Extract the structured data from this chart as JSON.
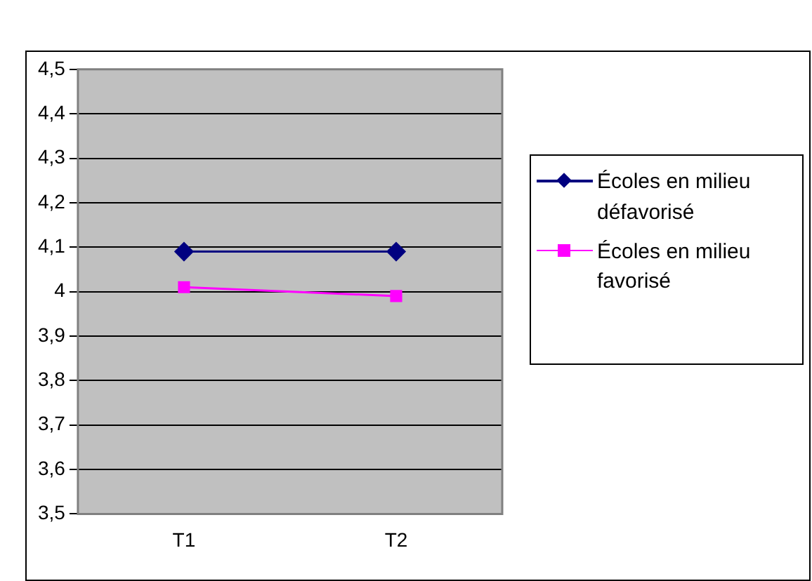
{
  "chart_data": {
    "type": "line",
    "categories": [
      "T1",
      "T2"
    ],
    "series": [
      {
        "name": "Écoles en milieu défavorisé",
        "color": "#000080",
        "values": [
          4.09,
          4.09
        ],
        "marker": "diamond"
      },
      {
        "name": "Écoles en milieu favorisé",
        "color": "#ff00ff",
        "values": [
          4.01,
          3.99
        ],
        "marker": "square"
      }
    ],
    "ylim": [
      3.5,
      4.5
    ],
    "yticks": [
      {
        "value": 3.5,
        "label": "3,5"
      },
      {
        "value": 3.6,
        "label": "3,6"
      },
      {
        "value": 3.7,
        "label": "3,7"
      },
      {
        "value": 3.8,
        "label": "3,8"
      },
      {
        "value": 3.9,
        "label": "3,9"
      },
      4,
      {
        "value": 4.1,
        "label": "4,1"
      },
      {
        "value": 4.2,
        "label": "4,2"
      },
      {
        "value": 4.3,
        "label": "4,3"
      },
      {
        "value": 4.4,
        "label": "4,4"
      },
      {
        "value": 4.5,
        "label": "4,5"
      }
    ],
    "grid": "y",
    "legend": "right",
    "line_style": "solid"
  }
}
